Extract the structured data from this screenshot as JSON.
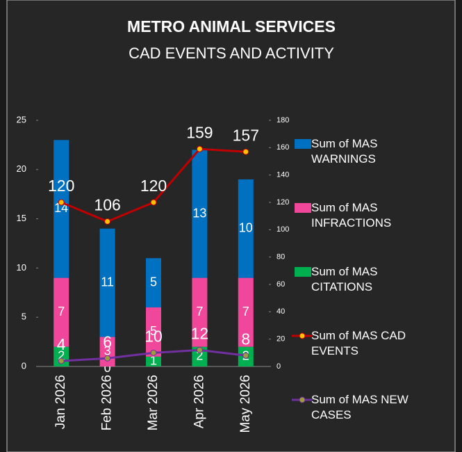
{
  "chart_data": {
    "type": "bar",
    "title": "METRO ANIMAL SERVICES",
    "subtitle": "CAD EVENTS AND ACTIVITY",
    "categories": [
      "Jan 2026",
      "Feb 2026",
      "Mar 2026",
      "Apr 2026",
      "May 2026"
    ],
    "stacked": true,
    "series": [
      {
        "name": "Sum of MAS CITATIONS",
        "color": "#00b050",
        "values": [
          2,
          0,
          1,
          2,
          2
        ]
      },
      {
        "name": "Sum of MAS INFRACTIONS",
        "color": "#f0479b",
        "values": [
          7,
          3,
          5,
          7,
          7
        ]
      },
      {
        "name": "Sum of MAS WARNINGS",
        "color": "#0070c0",
        "values": [
          14,
          11,
          5,
          13,
          10
        ]
      },
      {
        "name": "Sum of MAS CAD EVENTS",
        "type": "line",
        "axis": "y2",
        "color": "#c00000",
        "marker_color": "#ffc000",
        "values": [
          120,
          106,
          120,
          159,
          157
        ]
      },
      {
        "name": "Sum of MAS NEW CASES",
        "type": "line",
        "axis": "y2",
        "color": "#7030a0",
        "marker_color": "#9c9c3c",
        "values": [
          4,
          6,
          10,
          12,
          8
        ]
      }
    ],
    "legend_order": [
      2,
      1,
      0,
      3,
      4
    ],
    "legend": "right",
    "ylim": [
      0,
      25
    ],
    "yticks": [
      0,
      5,
      10,
      15,
      20,
      25
    ],
    "y2lim": [
      0,
      180
    ],
    "y2ticks": [
      0,
      20,
      40,
      60,
      80,
      100,
      120,
      140,
      160,
      180
    ]
  }
}
